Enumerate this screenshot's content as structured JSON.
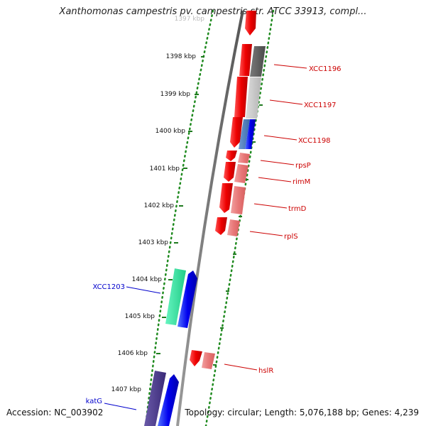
{
  "title": "Xanthomonas campestris pv. campestris str. ATCC 33913, compl...",
  "accession": "Accession: NC_003902",
  "topology": "Topology: circular; Length: 5,076,188 bp; Genes: 4,239",
  "ticks": [
    "1397 kbp",
    "1398 kbp",
    "1399 kbp",
    "1400 kbp",
    "1401 kbp",
    "1402 kbp",
    "1403 kbp",
    "1404 kbp",
    "1405 kbp",
    "1406 kbp",
    "1407 kbp"
  ],
  "gene_labels": [
    {
      "name": "XCC1196",
      "color": "#cc0000"
    },
    {
      "name": "XCC1197",
      "color": "#cc0000"
    },
    {
      "name": "XCC1198",
      "color": "#cc0000"
    },
    {
      "name": "rpsP",
      "color": "#cc0000"
    },
    {
      "name": "rimM",
      "color": "#cc0000"
    },
    {
      "name": "trmD",
      "color": "#cc0000"
    },
    {
      "name": "rplS",
      "color": "#cc0000"
    },
    {
      "name": "XCC1203",
      "color": "#0000cc"
    },
    {
      "name": "hslR",
      "color": "#cc0000"
    },
    {
      "name": "katG",
      "color": "#0000cc"
    }
  ]
}
